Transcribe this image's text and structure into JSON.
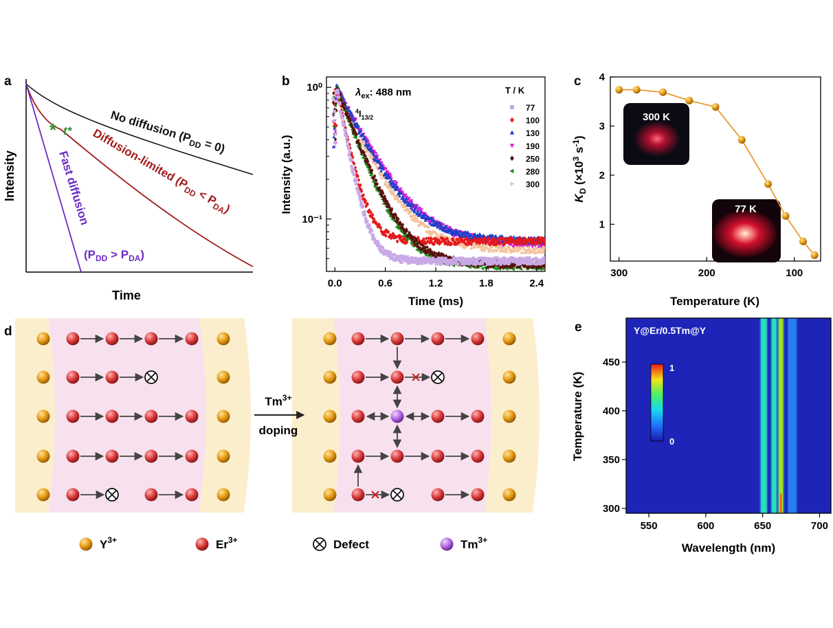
{
  "panels": {
    "a": {
      "letter": "a",
      "xlabel": "Time",
      "ylabel": "Intensity",
      "curve_labels": {
        "no_diffusion": "No diffusion (P",
        "no_diffusion_sub": "DD",
        "no_diffusion_tail": " = 0)",
        "diffusion_limited": "Diffusion-limited (P",
        "diffusion_limited_sub1": "DD",
        "diffusion_limited_mid": " < P",
        "diffusion_limited_sub2": "DA",
        "diffusion_limited_tail": ")",
        "fast_diffusion": "Fast diffusion",
        "fast_cond": "(P",
        "fast_cond_sub1": "DD",
        "fast_cond_mid": " > P",
        "fast_cond_sub2": "DA",
        "fast_cond_tail": ")",
        "tstar": "t*"
      },
      "colors": {
        "no_diffusion": "#111111",
        "diffusion_limited": "#a01c1c",
        "fast_diffusion": "#6a2bc2",
        "tstar": "#2f8f2f"
      }
    },
    "b": {
      "letter": "b",
      "xlabel": "Time (ms)",
      "ylabel": "Intensity (a.u.)",
      "annot_lambda": "λ",
      "annot_lambda_sub": "ex",
      "annot_lambda_val": ": 488 nm",
      "annot_level_sup": "4",
      "annot_level": "I",
      "annot_level_sub": "13/2",
      "legend_title": "T / K"
    },
    "c": {
      "letter": "c",
      "xlabel": "Temperature (K)",
      "ylabel_main": "K",
      "ylabel_sub": "D",
      "ylabel_unit": " (×10",
      "ylabel_sup": "3",
      "ylabel_unit2": " s",
      "ylabel_sup2": "-1",
      "ylabel_close": ")",
      "inset_hot": "300 K",
      "inset_cold": "77 K",
      "color": "#e8901a"
    },
    "d": {
      "letter": "d",
      "arrow_label1": "Tm",
      "arrow_label1_sup": "3+",
      "arrow_label2": "doping",
      "legend": [
        {
          "label": "Y",
          "sup": "3+",
          "icon": "y-ion"
        },
        {
          "label": "Er",
          "sup": "3+",
          "icon": "er-ion"
        },
        {
          "label": "Defect",
          "sup": "",
          "icon": "defect"
        },
        {
          "label": "Tm",
          "sup": "3+",
          "icon": "tm-ion"
        }
      ]
    },
    "e": {
      "letter": "e",
      "title": "Y@Er/0.5Tm@Y",
      "xlabel": "Wavelength (nm)",
      "ylabel": "Temperature (K)",
      "colorbar_max": "1",
      "colorbar_min": "0"
    }
  },
  "chart_data": [
    {
      "panel": "a",
      "type": "line",
      "title": "",
      "xlabel": "Time",
      "ylabel": "Intensity",
      "series": [
        {
          "name": "No diffusion (PDD = 0)",
          "x": [
            0,
            1
          ],
          "y": [
            1,
            0.55
          ]
        },
        {
          "name": "Diffusion-limited (PDD < PDA)",
          "x": [
            0,
            1
          ],
          "y": [
            1,
            0.05
          ]
        },
        {
          "name": "Fast diffusion (PDD > PDA)",
          "x": [
            0,
            0.24
          ],
          "y": [
            1,
            0
          ]
        }
      ]
    },
    {
      "panel": "b",
      "type": "scatter",
      "xlabel": "Time (ms)",
      "ylabel": "Intensity (a.u.)",
      "xlim": [
        -0.1,
        2.5
      ],
      "ylim": [
        0.04,
        1.2
      ],
      "yscale": "log",
      "xticks": [
        0.0,
        0.6,
        1.2,
        1.8,
        2.4
      ],
      "xtick_labels": [
        "0.0",
        "0.6",
        "1.2",
        "1.8",
        "2.4"
      ],
      "yticks": [
        0.1,
        1
      ],
      "ytick_labels": [
        "10⁻¹",
        "10⁰"
      ],
      "legend_title": "T / K",
      "legend_position": "top-right",
      "series": [
        {
          "name": "77",
          "color": "#c9a8e6",
          "marker": "square",
          "tau": 0.12,
          "floor": 0.048
        },
        {
          "name": "100",
          "color": "#e41a1c",
          "marker": "diamond",
          "tau": 0.13,
          "floor": 0.068
        },
        {
          "name": "130",
          "color": "#1f3fc7",
          "marker": "triangle-up",
          "tau": 0.32,
          "floor": 0.068
        },
        {
          "name": "190",
          "color": "#d61fd6",
          "marker": "triangle-down",
          "tau": 0.34,
          "floor": 0.064
        },
        {
          "name": "250",
          "color": "#5a1010",
          "marker": "diamond",
          "tau": 0.25,
          "floor": 0.045
        },
        {
          "name": "280",
          "color": "#1e8a1e",
          "marker": "triangle-left",
          "tau": 0.24,
          "floor": 0.044
        },
        {
          "name": "300",
          "color": "#f5c29a",
          "marker": "triangle-right",
          "tau": 0.3,
          "floor": 0.058
        }
      ]
    },
    {
      "panel": "c",
      "type": "line",
      "xlabel": "Temperature (K)",
      "ylabel": "KD (×10³ s⁻¹)",
      "xlim": [
        310,
        70
      ],
      "ylim": [
        0.25,
        4.0
      ],
      "xticks": [
        300,
        200,
        100
      ],
      "yticks": [
        1,
        2,
        3,
        4
      ],
      "series": [
        {
          "name": "KD",
          "x": [
            300,
            280,
            250,
            220,
            190,
            160,
            130,
            110,
            90,
            77
          ],
          "y": [
            3.74,
            3.74,
            3.69,
            3.52,
            3.39,
            2.72,
            1.82,
            1.17,
            0.65,
            0.37
          ]
        }
      ]
    },
    {
      "panel": "e",
      "type": "heatmap",
      "title": "Y@Er/0.5Tm@Y",
      "xlabel": "Wavelength (nm)",
      "ylabel": "Temperature (K)",
      "xlim": [
        530,
        710
      ],
      "ylim": [
        295,
        495
      ],
      "xticks": [
        550,
        600,
        650,
        700
      ],
      "yticks": [
        300,
        350,
        400,
        450
      ],
      "colorbar": [
        0,
        1
      ],
      "bands_nm": [
        {
          "center": 651,
          "width": 5,
          "level": 0.45
        },
        {
          "center": 660,
          "width": 4,
          "level": 0.5
        },
        {
          "center": 666,
          "width": 4,
          "level": 0.7
        },
        {
          "center": 676,
          "width": 6,
          "level": 0.15
        }
      ]
    }
  ]
}
